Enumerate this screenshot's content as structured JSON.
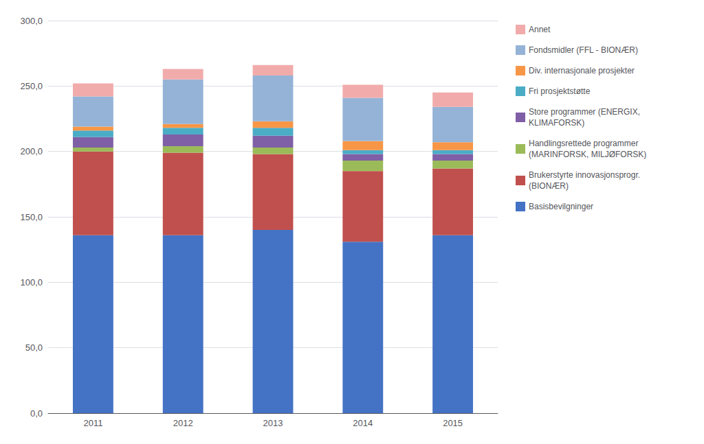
{
  "chart_data": {
    "type": "bar",
    "stacked": true,
    "categories": [
      "2011",
      "2012",
      "2013",
      "2014",
      "2015"
    ],
    "series": [
      {
        "name": "Basisbevilgninger",
        "color": "#4472C4",
        "values": [
          136,
          136,
          140,
          131,
          136
        ]
      },
      {
        "name": "Brukerstyrte innovasjonsprogr.\n(BIONÆR)",
        "color": "#C0504D",
        "values": [
          64,
          63,
          58,
          54,
          51
        ]
      },
      {
        "name": "Handlingsrettede programmer\n(MARINFORSK, MILJØFORSK)",
        "color": "#9BBB59",
        "values": [
          3,
          5,
          5,
          8,
          6
        ]
      },
      {
        "name": "Store programmer (ENERGIX,\nKLIMAFORSK)",
        "color": "#7F5FA6",
        "values": [
          8,
          9,
          9,
          5,
          5
        ]
      },
      {
        "name": "Fri prosjektstøtte",
        "color": "#4BACC6",
        "values": [
          5,
          5,
          6,
          3,
          3
        ]
      },
      {
        "name": "Div. internasjonale prosjekter",
        "color": "#F79646",
        "values": [
          3,
          3,
          5,
          7,
          6
        ]
      },
      {
        "name": "Fondsmidler (FFL - BIONÆR)",
        "color": "#95B3D7",
        "values": [
          23,
          34,
          35,
          33,
          27
        ]
      },
      {
        "name": "Annet",
        "color": "#F2ABAB",
        "values": [
          10,
          8,
          8,
          10,
          11
        ]
      }
    ],
    "ylim": [
      0,
      300
    ],
    "yticks": [
      {
        "value": 0,
        "label": "0,0"
      },
      {
        "value": 50,
        "label": "50,0"
      },
      {
        "value": 100,
        "label": "100,0"
      },
      {
        "value": 150,
        "label": "150,0"
      },
      {
        "value": 200,
        "label": "200,0"
      },
      {
        "value": 250,
        "label": "250,0"
      },
      {
        "value": 300,
        "label": "300,0"
      }
    ],
    "grid": true,
    "legend": "upper right"
  }
}
